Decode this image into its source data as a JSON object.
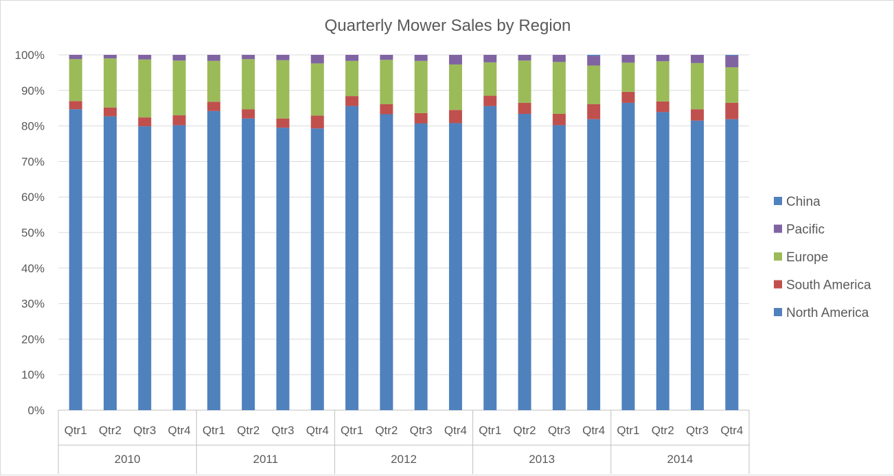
{
  "chart_data": {
    "type": "bar",
    "stacked": "percent",
    "title": "Quarterly Mower Sales by Region",
    "xlabel": "",
    "ylabel": "",
    "ylim": [
      0,
      100
    ],
    "y_ticks": [
      "0%",
      "10%",
      "20%",
      "30%",
      "40%",
      "50%",
      "60%",
      "70%",
      "80%",
      "90%",
      "100%"
    ],
    "categories": [
      "Qtr1",
      "Qtr2",
      "Qtr3",
      "Qtr4",
      "Qtr1",
      "Qtr2",
      "Qtr3",
      "Qtr4",
      "Qtr1",
      "Qtr2",
      "Qtr3",
      "Qtr4",
      "Qtr1",
      "Qtr2",
      "Qtr3",
      "Qtr4",
      "Qtr1",
      "Qtr2",
      "Qtr3",
      "Qtr4"
    ],
    "groups": [
      {
        "label": "2010",
        "start": 0,
        "count": 4
      },
      {
        "label": "2011",
        "start": 4,
        "count": 4
      },
      {
        "label": "2012",
        "start": 8,
        "count": 4
      },
      {
        "label": "2013",
        "start": 12,
        "count": 4
      },
      {
        "label": "2014",
        "start": 16,
        "count": 4
      }
    ],
    "series": [
      {
        "name": "North America",
        "color": "#4f81bd",
        "values": [
          84.7,
          82.7,
          79.9,
          80.2,
          84.2,
          82.1,
          79.5,
          79.3,
          85.6,
          83.3,
          80.7,
          80.8,
          85.6,
          83.4,
          80.2,
          81.9,
          86.5,
          83.9,
          81.5,
          81.9
        ]
      },
      {
        "name": "South America",
        "color": "#c0504d",
        "values": [
          2.3,
          2.5,
          2.5,
          2.8,
          2.6,
          2.6,
          2.6,
          3.6,
          2.8,
          2.8,
          2.9,
          3.7,
          2.9,
          3.1,
          3.2,
          4.2,
          3.1,
          3.0,
          3.2,
          4.6
        ]
      },
      {
        "name": "Europe",
        "color": "#9bbb59",
        "values": [
          11.8,
          13.8,
          16.3,
          15.4,
          11.5,
          14.1,
          16.4,
          14.7,
          9.9,
          12.5,
          14.7,
          12.8,
          9.4,
          11.9,
          14.6,
          10.9,
          8.2,
          11.3,
          13.0,
          10.0
        ]
      },
      {
        "name": "Pacific",
        "color": "#8064a2",
        "values": [
          1.2,
          1.0,
          1.3,
          1.6,
          1.7,
          1.2,
          1.5,
          2.4,
          1.7,
          1.4,
          1.7,
          2.7,
          2.1,
          1.6,
          2.0,
          2.7,
          2.2,
          1.8,
          2.3,
          3.3
        ]
      },
      {
        "name": "China",
        "color": "#4f81bd",
        "values": [
          0,
          0,
          0,
          0,
          0,
          0,
          0,
          0,
          0,
          0,
          0,
          0,
          0,
          0,
          0,
          0.3,
          0,
          0,
          0,
          0.2
        ]
      }
    ],
    "legend": {
      "position": "right",
      "entries": [
        "China",
        "Pacific",
        "Europe",
        "South America",
        "North America"
      ]
    },
    "grid": true
  },
  "colors": {
    "grid": "#d9d9d9",
    "axis": "#bfbfbf",
    "text": "#595959"
  }
}
